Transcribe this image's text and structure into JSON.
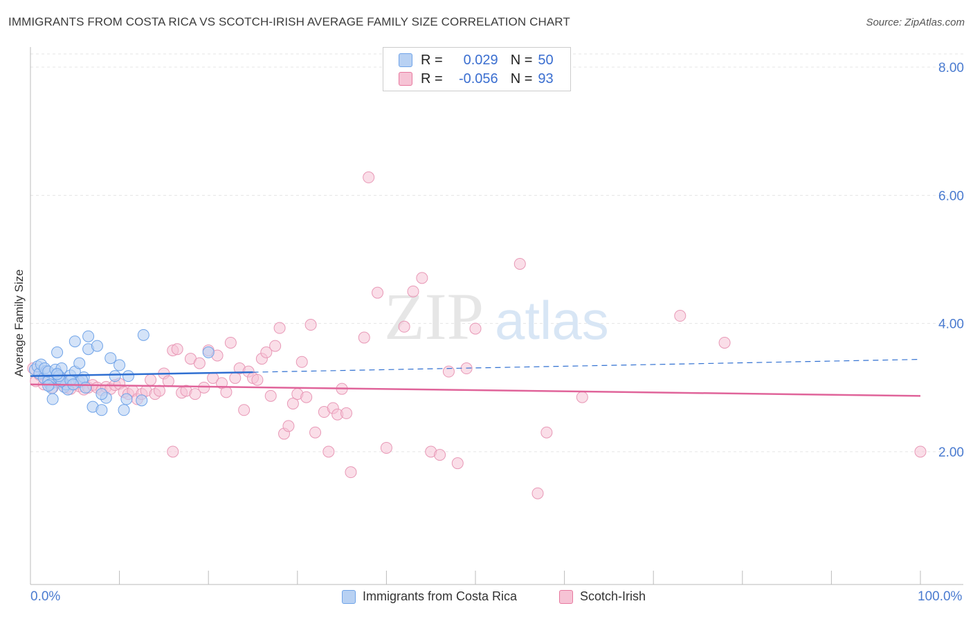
{
  "title": "IMMIGRANTS FROM COSTA RICA VS SCOTCH-IRISH AVERAGE FAMILY SIZE CORRELATION CHART",
  "source": "Source: ZipAtlas.com",
  "watermark": {
    "zip": "ZIP",
    "atlas": "atlas"
  },
  "colors": {
    "blue": "#6fa3e8",
    "blue_fill": "#b8d1f3",
    "pink": "#e7799f",
    "pink_fill": "#f6c3d5",
    "blue_line": "#2f6fd1",
    "pink_line": "#e0649a"
  },
  "legend": {
    "r_label": "R =",
    "n_label": "N =",
    "series1": {
      "r": "0.029",
      "n": "50"
    },
    "series2": {
      "r": "-0.056",
      "n": "93"
    }
  },
  "chart_data": {
    "type": "scatter",
    "title": "IMMIGRANTS FROM COSTA RICA VS SCOTCH-IRISH AVERAGE FAMILY SIZE CORRELATION CHART",
    "xlabel": "",
    "ylabel": "Average Family Size",
    "xlim": [
      0,
      100
    ],
    "ylim": [
      0,
      8.3
    ],
    "x_tick_labels": {
      "left": "0.0%",
      "right": "100.0%"
    },
    "y_ticks": [
      {
        "value": 2,
        "label": "2.00"
      },
      {
        "value": 4,
        "label": "4.00"
      },
      {
        "value": 6,
        "label": "6.00"
      },
      {
        "value": 8,
        "label": "8.00"
      }
    ],
    "series": [
      {
        "name": "Immigrants from Costa Rica",
        "r": 0.029,
        "n": 50,
        "trend": {
          "x0": 0,
          "y0": 3.18,
          "x1": 25,
          "y1": 3.24,
          "dash_to_x": 100,
          "dash_to_y": 3.44
        },
        "points": [
          [
            0.5,
            3.28
          ],
          [
            0.8,
            3.33
          ],
          [
            1.0,
            3.22
          ],
          [
            1.2,
            3.36
          ],
          [
            1.5,
            3.15
          ],
          [
            1.8,
            3.26
          ],
          [
            2.0,
            3.1
          ],
          [
            2.2,
            3.05
          ],
          [
            2.4,
            2.99
          ],
          [
            1.6,
            3.3
          ],
          [
            2.0,
            3.25
          ],
          [
            2.5,
            2.82
          ],
          [
            2.0,
            3.03
          ],
          [
            3.0,
            3.22
          ],
          [
            3.2,
            3.15
          ],
          [
            2.8,
            3.28
          ],
          [
            3.5,
            3.3
          ],
          [
            3.0,
            3.55
          ],
          [
            3.8,
            3.01
          ],
          [
            4.0,
            3.05
          ],
          [
            4.5,
            3.19
          ],
          [
            4.2,
            2.97
          ],
          [
            5.0,
            3.25
          ],
          [
            3.5,
            3.1
          ],
          [
            3.2,
            3.18
          ],
          [
            5.5,
            3.38
          ],
          [
            5.0,
            3.72
          ],
          [
            5.5,
            3.09
          ],
          [
            6.0,
            3.16
          ],
          [
            6.5,
            3.8
          ],
          [
            6.5,
            3.6
          ],
          [
            5.8,
            3.12
          ],
          [
            7.0,
            2.7
          ],
          [
            7.5,
            3.65
          ],
          [
            8.0,
            2.65
          ],
          [
            8.5,
            2.84
          ],
          [
            8.0,
            2.9
          ],
          [
            9.0,
            3.46
          ],
          [
            9.5,
            3.18
          ],
          [
            10.0,
            3.35
          ],
          [
            10.5,
            2.65
          ],
          [
            10.8,
            2.82
          ],
          [
            11.0,
            3.18
          ],
          [
            12.5,
            2.8
          ],
          [
            12.7,
            3.82
          ],
          [
            20.0,
            3.55
          ],
          [
            4.5,
            3.11
          ],
          [
            3.0,
            3.21
          ],
          [
            4.8,
            3.05
          ],
          [
            6.2,
            3.0
          ]
        ]
      },
      {
        "name": "Scotch-Irish",
        "r": -0.056,
        "n": 93,
        "trend": {
          "x0": 0,
          "y0": 3.05,
          "x1": 100,
          "y1": 2.87
        },
        "points": [
          [
            0.3,
            3.3
          ],
          [
            0.6,
            3.1
          ],
          [
            1.0,
            3.2
          ],
          [
            1.5,
            3.05
          ],
          [
            2.0,
            3.12
          ],
          [
            2.5,
            3.0
          ],
          [
            3.0,
            3.08
          ],
          [
            3.5,
            3.14
          ],
          [
            4.0,
            3.0
          ],
          [
            4.5,
            2.98
          ],
          [
            5.0,
            3.05
          ],
          [
            5.5,
            3.02
          ],
          [
            6.0,
            2.97
          ],
          [
            6.5,
            3.0
          ],
          [
            7.0,
            3.04
          ],
          [
            7.5,
            3.0
          ],
          [
            8.0,
            2.96
          ],
          [
            8.5,
            3.01
          ],
          [
            9.0,
            2.98
          ],
          [
            9.5,
            3.04
          ],
          [
            10.0,
            3.06
          ],
          [
            10.5,
            2.93
          ],
          [
            11.0,
            2.9
          ],
          [
            11.5,
            2.95
          ],
          [
            12.0,
            2.82
          ],
          [
            12.5,
            2.9
          ],
          [
            13.0,
            2.95
          ],
          [
            13.5,
            3.12
          ],
          [
            14.0,
            2.9
          ],
          [
            14.5,
            2.95
          ],
          [
            15.0,
            3.22
          ],
          [
            15.5,
            3.1
          ],
          [
            16.0,
            3.58
          ],
          [
            16.5,
            3.6
          ],
          [
            17.0,
            2.92
          ],
          [
            17.5,
            2.95
          ],
          [
            18.0,
            3.45
          ],
          [
            18.5,
            2.9
          ],
          [
            19.0,
            3.38
          ],
          [
            19.5,
            3.0
          ],
          [
            20.0,
            3.58
          ],
          [
            20.5,
            3.15
          ],
          [
            21.0,
            3.5
          ],
          [
            21.5,
            3.07
          ],
          [
            22.0,
            2.93
          ],
          [
            22.5,
            3.7
          ],
          [
            23.0,
            3.15
          ],
          [
            23.5,
            3.3
          ],
          [
            24.0,
            2.65
          ],
          [
            24.5,
            3.25
          ],
          [
            25.0,
            3.15
          ],
          [
            25.5,
            3.12
          ],
          [
            26.0,
            3.45
          ],
          [
            26.5,
            3.55
          ],
          [
            27.0,
            2.87
          ],
          [
            27.5,
            3.65
          ],
          [
            28.0,
            3.93
          ],
          [
            28.5,
            2.28
          ],
          [
            29.0,
            2.4
          ],
          [
            29.5,
            2.75
          ],
          [
            30.0,
            2.9
          ],
          [
            30.5,
            3.4
          ],
          [
            31.0,
            2.85
          ],
          [
            31.5,
            3.98
          ],
          [
            32.0,
            2.3
          ],
          [
            33.0,
            2.62
          ],
          [
            33.5,
            2.0
          ],
          [
            34.0,
            2.68
          ],
          [
            34.5,
            2.58
          ],
          [
            35.0,
            2.98
          ],
          [
            35.5,
            2.6
          ],
          [
            36.0,
            1.68
          ],
          [
            37.5,
            3.78
          ],
          [
            38.0,
            6.28
          ],
          [
            39.0,
            4.48
          ],
          [
            40.0,
            2.06
          ],
          [
            42.0,
            3.95
          ],
          [
            43.0,
            4.5
          ],
          [
            44.0,
            4.71
          ],
          [
            45.0,
            2.0
          ],
          [
            46.0,
            1.95
          ],
          [
            47.0,
            3.25
          ],
          [
            48.0,
            1.82
          ],
          [
            49.0,
            3.3
          ],
          [
            50.0,
            3.92
          ],
          [
            55.0,
            4.93
          ],
          [
            57.0,
            1.35
          ],
          [
            58.0,
            2.3
          ],
          [
            62.0,
            2.85
          ],
          [
            73.0,
            4.12
          ],
          [
            78.0,
            3.7
          ],
          [
            100.0,
            2.0
          ],
          [
            16.0,
            2.0
          ]
        ]
      }
    ]
  },
  "bottom_legend": {
    "item1": "Immigrants from Costa Rica",
    "item2": "Scotch-Irish"
  }
}
